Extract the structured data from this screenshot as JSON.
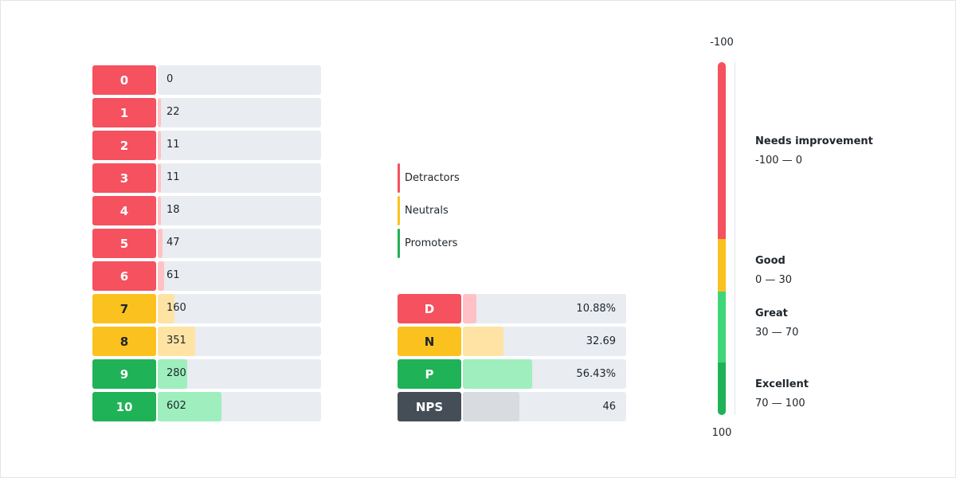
{
  "colors": {
    "detractor": "#f5515f",
    "detractor_fill": "#ffc1c5",
    "neutral": "#fbc21f",
    "neutral_fill": "#ffe3a4",
    "promoter": "#20b257",
    "promoter_fill": "#9eefbd",
    "nps": "#454e57",
    "nps_fill": "#d8dbdf",
    "great": "#3fd679",
    "track": "#e9ecf0"
  },
  "chart_data": {
    "type": "bar",
    "categories": [
      "0",
      "1",
      "2",
      "3",
      "4",
      "5",
      "6",
      "7",
      "8",
      "9",
      "10"
    ],
    "values": [
      0,
      22,
      11,
      11,
      18,
      47,
      61,
      160,
      351,
      280,
      602
    ],
    "groups": [
      "detractor",
      "detractor",
      "detractor",
      "detractor",
      "detractor",
      "detractor",
      "detractor",
      "neutral",
      "neutral",
      "promoter",
      "promoter"
    ],
    "max": 602
  },
  "legend": [
    "Detractors",
    "Neutrals",
    "Promoters"
  ],
  "summary": [
    {
      "label": "D",
      "value_text": "10.88%",
      "fraction": 0.1088,
      "group": "detractor"
    },
    {
      "label": "N",
      "value_text": "32.69",
      "fraction": 0.3269,
      "group": "neutral"
    },
    {
      "label": "P",
      "value_text": "56.43%",
      "fraction": 0.5643,
      "group": "promoter"
    },
    {
      "label": "NPS",
      "value_text": "46",
      "fraction": 0.46,
      "group": "nps"
    }
  ],
  "scale": {
    "top_label": "-100",
    "bottom_label": "100",
    "zones": [
      {
        "name": "Needs improvement",
        "range": "-100 — 0",
        "from": -100,
        "to": 0,
        "color": "#f5515f"
      },
      {
        "name": "Good",
        "range": "0 — 30",
        "from": 0,
        "to": 30,
        "color": "#fbc21f"
      },
      {
        "name": "Great",
        "range": "30 — 70",
        "from": 30,
        "to": 70,
        "color": "#3fd679"
      },
      {
        "name": "Excellent",
        "range": "70 — 100",
        "from": 70,
        "to": 100,
        "color": "#20b257"
      }
    ]
  }
}
